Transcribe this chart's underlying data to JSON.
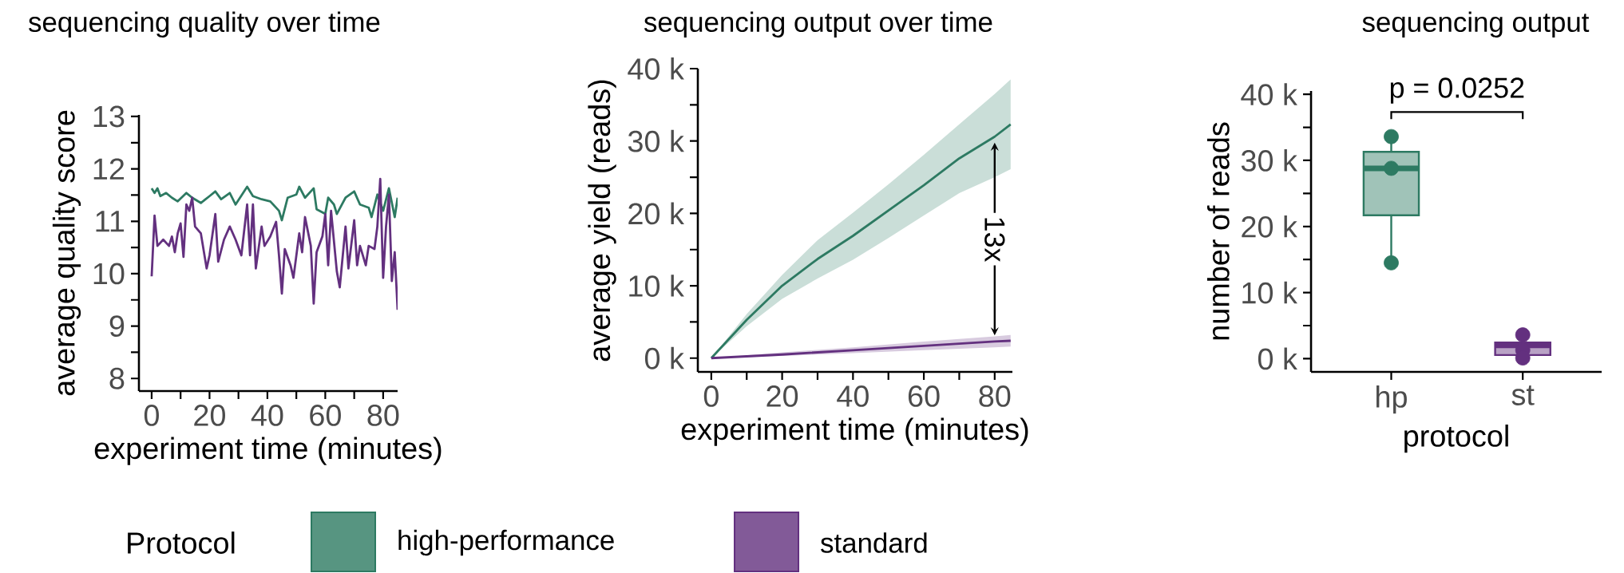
{
  "chart_data": [
    {
      "type": "line",
      "title": "sequencing quality over time",
      "xlabel": "experiment time (minutes)",
      "ylabel": "average quality score",
      "xlim": [
        -4.4,
        85
      ],
      "ylim": [
        7.76,
        13.03
      ],
      "xticks": [
        0,
        {
          "value": 10,
          "label": null
        },
        20,
        {
          "value": 30,
          "label": null
        },
        40,
        {
          "value": 50,
          "label": null
        },
        60,
        {
          "value": 70,
          "label": null
        },
        80
      ],
      "yticks": [
        8,
        {
          "value": 8.5,
          "label": null
        },
        9,
        {
          "value": 9.5,
          "label": null
        },
        10,
        {
          "value": 10.5,
          "label": null
        },
        11,
        {
          "value": 11.5,
          "label": null
        },
        12,
        {
          "value": 12.5,
          "label": null
        },
        13
      ],
      "legend": "bottom",
      "legend_title": "Protocol",
      "series": [
        {
          "name": "high-performance",
          "color": "#2d7a62",
          "x": [
            0,
            1,
            2,
            3,
            5,
            7,
            9,
            12,
            14,
            17,
            20,
            22,
            24,
            27,
            29,
            33,
            35,
            38,
            41,
            44,
            45,
            47,
            50,
            51,
            53,
            56,
            57,
            60,
            61,
            63,
            64,
            67,
            70,
            72,
            75,
            76,
            78,
            80,
            82,
            84,
            85
          ],
          "values": [
            11.63,
            11.54,
            11.63,
            11.48,
            11.54,
            11.45,
            11.38,
            11.54,
            11.45,
            11.35,
            11.48,
            11.57,
            11.42,
            11.54,
            11.32,
            11.66,
            11.48,
            11.42,
            11.38,
            11.2,
            11.02,
            11.45,
            11.51,
            11.66,
            11.45,
            11.63,
            11.23,
            11.14,
            11.45,
            11.32,
            11.14,
            11.45,
            11.57,
            11.32,
            11.26,
            11.08,
            11.51,
            11.2,
            11.63,
            11.08,
            11.45
          ]
        },
        {
          "name": "standard",
          "color": "#63307f",
          "x": [
            0,
            1,
            2,
            4,
            6,
            7,
            8,
            9,
            10,
            11,
            12,
            13,
            14,
            15,
            17,
            19,
            20,
            22,
            23,
            25,
            27,
            29,
            31,
            33,
            34,
            35,
            36,
            38,
            39,
            41,
            43,
            44,
            45,
            46,
            48,
            49,
            51,
            52,
            53,
            55,
            56,
            57,
            59,
            60,
            61,
            62,
            64,
            65,
            67,
            68,
            70,
            71,
            72,
            74,
            75,
            77,
            78,
            79,
            80,
            81,
            82,
            83,
            84,
            85
          ],
          "values": [
            9.95,
            11.11,
            10.53,
            10.65,
            10.53,
            10.71,
            10.41,
            10.77,
            10.96,
            10.32,
            11.32,
            11.2,
            11.45,
            10.9,
            10.77,
            10.1,
            10.35,
            11.14,
            10.23,
            10.65,
            10.9,
            10.65,
            10.35,
            11.32,
            10.35,
            11.32,
            10.1,
            10.9,
            10.53,
            10.71,
            10.99,
            10.35,
            9.62,
            10.47,
            10.16,
            9.92,
            10.77,
            10.41,
            11.08,
            10.53,
            9.43,
            10.41,
            10.71,
            11.14,
            10.16,
            11.2,
            10.04,
            9.74,
            10.9,
            10.1,
            11.02,
            10.16,
            10.53,
            10.16,
            10.53,
            10.47,
            10.9,
            11.81,
            9.92,
            10.9,
            11.51,
            9.86,
            10.41,
            9.31
          ]
        }
      ]
    },
    {
      "type": "line",
      "title": "sequencing output over time",
      "xlabel": "experiment time (minutes)",
      "ylabel": "average yield (reads)",
      "xlim": [
        -3.8,
        85
      ],
      "ylim": [
        -1900,
        40000
      ],
      "xticks": [
        0,
        {
          "value": 10,
          "label": null
        },
        20,
        {
          "value": 30,
          "label": null
        },
        40,
        {
          "value": 50,
          "label": null
        },
        60,
        {
          "value": 70,
          "label": null
        },
        80
      ],
      "yticks": [
        {
          "value": 0,
          "label": "0 k"
        },
        {
          "value": 5000,
          "label": null
        },
        {
          "value": 10000,
          "label": "10 k"
        },
        {
          "value": 15000,
          "label": null
        },
        {
          "value": 20000,
          "label": "20 k"
        },
        {
          "value": 25000,
          "label": null
        },
        {
          "value": 30000,
          "label": "30 k"
        },
        {
          "value": 35000,
          "label": null
        },
        {
          "value": 40000,
          "label": "40 k"
        }
      ],
      "annotations": [
        "13x"
      ],
      "series": [
        {
          "color": "#2d7a62",
          "x": [
            0,
            10,
            20,
            30,
            40,
            50,
            60,
            70,
            80,
            84.5
          ],
          "values": [
            0,
            5300,
            10000,
            13700,
            16900,
            20400,
            23900,
            27600,
            30600,
            32300
          ],
          "lower": [
            0,
            4400,
            8200,
            11000,
            13600,
            16600,
            19700,
            22800,
            25000,
            26100
          ],
          "upper": [
            0,
            6100,
            11500,
            16300,
            20100,
            24000,
            28100,
            32300,
            36500,
            38500
          ]
        },
        {
          "color": "#63307f",
          "x": [
            0,
            20,
            40,
            60,
            80,
            84.5
          ],
          "values": [
            0,
            500,
            1100,
            1700,
            2300,
            2400
          ],
          "lower": [
            0,
            300,
            700,
            1100,
            1500,
            1600
          ],
          "upper": [
            0,
            800,
            1500,
            2300,
            3000,
            3200
          ]
        }
      ]
    },
    {
      "type": "box",
      "title": "sequencing output",
      "xlabel": "protocol",
      "ylabel": "number of reads",
      "categories": [
        "hp",
        "st"
      ],
      "ylim": [
        -2000,
        40500
      ],
      "yticks": [
        {
          "value": 0,
          "label": "0 k"
        },
        {
          "value": 5000,
          "label": null
        },
        {
          "value": 10000,
          "label": "10 k"
        },
        {
          "value": 15000,
          "label": null
        },
        {
          "value": 20000,
          "label": "20 k"
        },
        {
          "value": 25000,
          "label": null
        },
        {
          "value": 30000,
          "label": "30 k"
        },
        {
          "value": 35000,
          "label": null
        },
        {
          "value": 40000,
          "label": "40 k"
        }
      ],
      "annotations": [
        "p = 0.0252"
      ],
      "series": [
        {
          "type": "box",
          "colors": [
            "#2d7a62",
            "#63307f"
          ],
          "boxes": [
            {
              "low": 14500,
              "q1": 21700,
              "median": 28800,
              "q3": 31300,
              "high": 33600
            },
            {
              "low": 100,
              "q1": 550,
              "median": 2000,
              "q3": 2450,
              "high": 3600
            }
          ]
        },
        {
          "type": "scatter",
          "marker": "circle",
          "x": [
            "hp",
            "hp",
            "hp",
            "st",
            "st",
            "st"
          ],
          "values": [
            33600,
            28800,
            14500,
            3600,
            1300,
            100
          ],
          "colors": [
            "#2d7a62",
            "#2d7a62",
            "#2d7a62",
            "#63307f",
            "#63307f",
            "#63307f"
          ]
        }
      ]
    }
  ]
}
